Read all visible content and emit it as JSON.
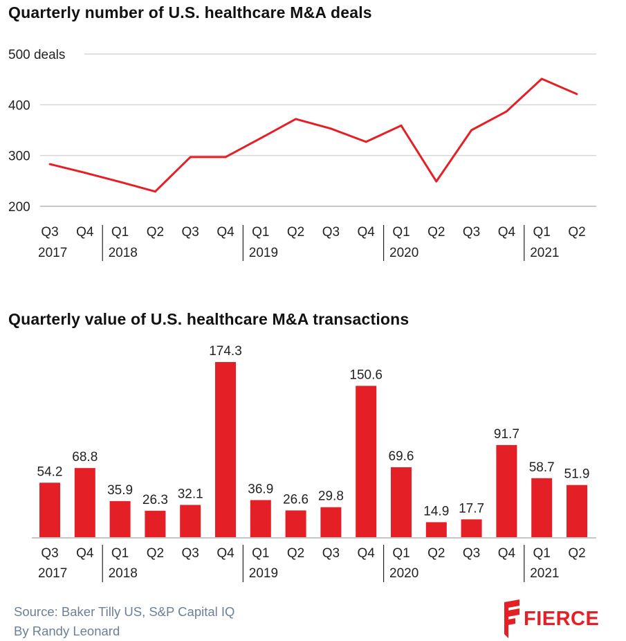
{
  "chart_data": [
    {
      "type": "line",
      "title": "Quarterly number of U.S. healthcare M&A deals",
      "quarters": [
        "Q3",
        "Q4",
        "Q1",
        "Q2",
        "Q3",
        "Q4",
        "Q1",
        "Q2",
        "Q3",
        "Q4",
        "Q1",
        "Q2",
        "Q3",
        "Q4",
        "Q1",
        "Q2"
      ],
      "years": [
        {
          "label": "2017",
          "start_index": 0
        },
        {
          "label": "2018",
          "start_index": 2
        },
        {
          "label": "2019",
          "start_index": 6
        },
        {
          "label": "2020",
          "start_index": 10
        },
        {
          "label": "2021",
          "start_index": 14
        }
      ],
      "values": [
        283,
        266,
        248,
        229,
        297,
        297,
        334,
        372,
        353,
        327,
        359,
        249,
        350,
        387,
        451,
        421
      ],
      "yticks": [
        {
          "value": 200,
          "label": "200"
        },
        {
          "value": 300,
          "label": "300"
        },
        {
          "value": 400,
          "label": "400"
        },
        {
          "value": 500,
          "label": "500 deals"
        }
      ],
      "ylim": [
        200,
        500
      ],
      "grid": true,
      "color": "#e41f26"
    },
    {
      "type": "bar",
      "title": "Quarterly value of U.S. healthcare M&A transactions",
      "quarters": [
        "Q3",
        "Q4",
        "Q1",
        "Q2",
        "Q3",
        "Q4",
        "Q1",
        "Q2",
        "Q3",
        "Q4",
        "Q1",
        "Q2",
        "Q3",
        "Q4",
        "Q1",
        "Q2"
      ],
      "years": [
        {
          "label": "2017",
          "start_index": 0
        },
        {
          "label": "2018",
          "start_index": 2
        },
        {
          "label": "2019",
          "start_index": 6
        },
        {
          "label": "2020",
          "start_index": 10
        },
        {
          "label": "2021",
          "start_index": 14
        }
      ],
      "values": [
        54.2,
        68.8,
        35.9,
        26.3,
        32.1,
        174.3,
        36.9,
        26.6,
        29.8,
        150.6,
        69.6,
        14.9,
        17.7,
        91.7,
        58.7,
        51.9
      ],
      "labels": [
        "54.2",
        "68.8",
        "35.9",
        "26.3",
        "32.1",
        "174.3",
        "36.9",
        "26.6",
        "29.8",
        "150.6",
        "69.6",
        "14.9",
        "17.7",
        "91.7",
        "58.7",
        "51.9"
      ],
      "ylim": [
        0,
        174.3
      ],
      "color": "#e41f26"
    }
  ],
  "footer": {
    "source": "Source: Baker Tilly US, S&P Capital IQ",
    "byline": "By Randy Leonard",
    "logo_text": "FIERCE"
  }
}
